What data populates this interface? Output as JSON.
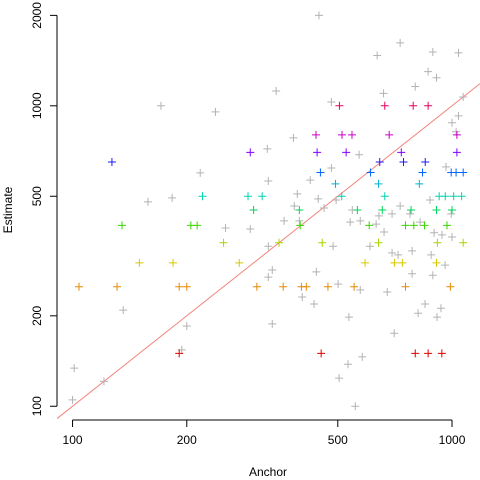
{
  "chart_data": {
    "type": "scatter",
    "x_label": "Anchor",
    "y_label": "Estimate",
    "xscale": "log",
    "yscale": "log",
    "xlim": [
      91,
      1185
    ],
    "ylim": [
      90,
      2250
    ],
    "xticks": [
      100,
      200,
      500,
      1000
    ],
    "yticks": [
      100,
      200,
      500,
      1000,
      2000
    ],
    "identity_line": {
      "color": "#f4837d"
    },
    "series": [
      {
        "color": "#b3b3b3",
        "x": [
          446,
          730,
          635,
          865,
          890,
          1040,
          800,
          910,
          660,
          1070,
          171,
          344,
          481,
          238,
          1040,
          1000,
          1025,
          382,
          326,
          217,
          569,
          964,
          481,
          423,
          328,
          158,
          183,
          391,
          384,
          444,
          460,
          495,
          546,
          573,
          642,
          695,
          730,
          775,
          824,
          875,
          897,
          941,
          995,
          1000,
          881,
          662,
          695,
          721,
          785,
          361,
          328,
          294,
          253,
          396,
          486,
          539,
          336,
          439,
          501,
          328,
          890,
          959,
          573,
          675,
          433,
          403,
          136,
          200,
          336,
          535,
          704,
          814,
          913,
          935,
          580,
          532,
          504,
          194,
          101,
          121,
          100,
          556,
          849,
          785,
          608,
          631
        ],
        "y": [
          2000,
          1620,
          1470,
          1300,
          1510,
          1500,
          1160,
          1240,
          1100,
          1070,
          1000,
          1120,
          1030,
          955,
          926,
          878,
          820,
          782,
          719,
          598,
          687,
          626,
          621,
          566,
          562,
          479,
          494,
          509,
          464,
          490,
          457,
          486,
          450,
          414,
          430,
          437,
          464,
          437,
          410,
          486,
          378,
          372,
          437,
          366,
          319,
          380,
          324,
          319,
          329,
          414,
          341,
          389,
          392,
          414,
          341,
          410,
          284,
          280,
          255,
          269,
          273,
          295,
          244,
          240,
          219,
          231,
          209,
          185,
          188,
          198,
          175,
          204,
          198,
          212,
          146,
          138,
          124,
          154,
          134,
          121,
          105,
          100,
          219,
          276,
          341,
          404
        ]
      },
      {
        "color": "#e00000",
        "x": [
          191,
          452,
          800,
          865,
          940
        ],
        "y": [
          150,
          150,
          150,
          150,
          150
        ]
      },
      {
        "color": "#e68a00",
        "x": [
          104,
          131,
          191,
          200,
          306,
          359,
          401,
          413,
          471,
          552,
          754,
          990
        ],
        "y": [
          250,
          250,
          250,
          250,
          250,
          250,
          250,
          250,
          250,
          250,
          250,
          250
        ]
      },
      {
        "color": "#d8c800",
        "x": [
          150,
          184,
          275,
          590,
          705,
          740,
          910
        ],
        "y": [
          300,
          300,
          300,
          300,
          300,
          300,
          300
        ]
      },
      {
        "color": "#a8d400",
        "x": [
          250,
          350,
          455,
          640,
          915,
          1070
        ],
        "y": [
          350,
          350,
          350,
          350,
          350,
          350
        ]
      },
      {
        "color": "#3ad400",
        "x": [
          135,
          205,
          213,
          398,
          605,
          754,
          793,
          846,
          970
        ],
        "y": [
          400,
          400,
          400,
          400,
          400,
          400,
          400,
          400,
          400
        ]
      },
      {
        "color": "#00d45a",
        "x": [
          300,
          396,
          563,
          655,
          780,
          910,
          1000
        ],
        "y": [
          450,
          450,
          450,
          450,
          450,
          450,
          450
        ]
      },
      {
        "color": "#00d4b0",
        "x": [
          220,
          290,
          316,
          512,
          665,
          925,
          960,
          1010,
          1060
        ],
        "y": [
          500,
          500,
          500,
          500,
          500,
          500,
          500,
          500,
          500
        ]
      },
      {
        "color": "#00b4d4",
        "x": [
          493,
          640,
          820
        ],
        "y": [
          550,
          550,
          550
        ]
      },
      {
        "color": "#0066ff",
        "x": [
          450,
          610,
          836,
          995,
          1025,
          1070
        ],
        "y": [
          600,
          600,
          600,
          600,
          600,
          600
        ]
      },
      {
        "color": "#1a1aff",
        "x": [
          127,
          645,
          745,
          850
        ],
        "y": [
          650,
          650,
          650,
          650
        ]
      },
      {
        "color": "#8000ff",
        "x": [
          294,
          441,
          526,
          735,
          1030
        ],
        "y": [
          700,
          700,
          700,
          700,
          700
        ]
      },
      {
        "color": "#cc00cc",
        "x": [
          438,
          513,
          545,
          683,
          1030
        ],
        "y": [
          800,
          800,
          800,
          800,
          800
        ]
      },
      {
        "color": "#e6005c",
        "x": [
          505,
          665,
          790,
          865
        ],
        "y": [
          1000,
          1000,
          1000,
          1000
        ]
      }
    ]
  }
}
